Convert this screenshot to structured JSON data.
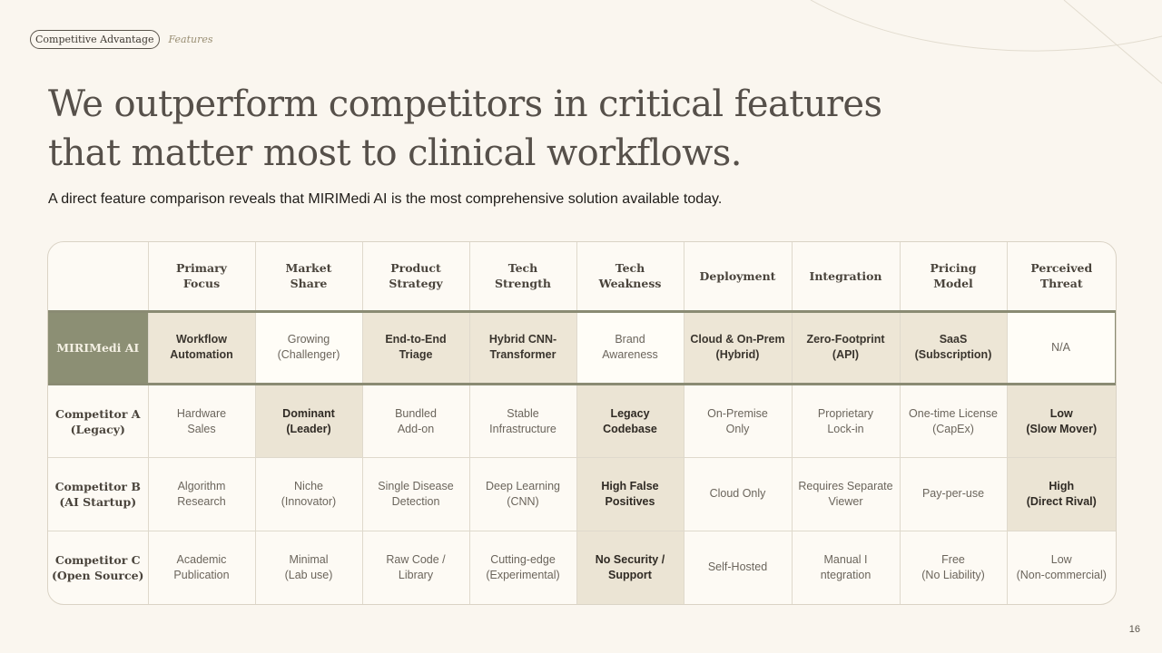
{
  "breadcrumb": {
    "section": "Competitive Advantage",
    "page": "Features"
  },
  "title_line1": "We outperform competitors in critical features",
  "title_line2": "that matter most to clinical workflows.",
  "subtitle": "A direct feature comparison reveals that MIRIMedi AI is the most comprehensive solution available today.",
  "table": {
    "headers": [
      [
        "Primary",
        "Focus"
      ],
      [
        "Market",
        "Share"
      ],
      [
        "Product",
        "Strategy"
      ],
      [
        "Tech",
        "Strength"
      ],
      [
        "Tech",
        "Weakness"
      ],
      [
        "Deployment"
      ],
      [
        "Integration"
      ],
      [
        "Pricing",
        "Model"
      ],
      [
        "Perceived",
        "Threat"
      ]
    ],
    "rows": [
      {
        "name": [
          "MIRIMedi AI"
        ],
        "cells": [
          {
            "lines": [
              "Workflow",
              "Automation"
            ],
            "highlight": true
          },
          {
            "lines": [
              "Growing",
              "(Challenger)"
            ],
            "highlight": false
          },
          {
            "lines": [
              "End-to-End",
              "Triage"
            ],
            "highlight": true
          },
          {
            "lines": [
              "Hybrid CNN-",
              "Transformer"
            ],
            "highlight": true
          },
          {
            "lines": [
              "Brand",
              "Awareness"
            ],
            "highlight": false
          },
          {
            "lines": [
              "Cloud & On-Prem",
              "(Hybrid)"
            ],
            "highlight": true
          },
          {
            "lines": [
              "Zero-Footprint",
              "(API)"
            ],
            "highlight": true
          },
          {
            "lines": [
              "SaaS",
              "(Subscription)"
            ],
            "highlight": true
          },
          {
            "lines": [
              "N/A"
            ],
            "highlight": false
          }
        ]
      },
      {
        "name": [
          "Competitor A",
          "(Legacy)"
        ],
        "cells": [
          {
            "lines": [
              "Hardware",
              "Sales"
            ],
            "highlight": false
          },
          {
            "lines": [
              "Dominant",
              "(Leader)"
            ],
            "highlight": true
          },
          {
            "lines": [
              "Bundled",
              "Add-on"
            ],
            "highlight": false
          },
          {
            "lines": [
              "Stable",
              "Infrastructure"
            ],
            "highlight": false
          },
          {
            "lines": [
              "Legacy",
              "Codebase"
            ],
            "highlight": true
          },
          {
            "lines": [
              "On-Premise",
              "Only"
            ],
            "highlight": false
          },
          {
            "lines": [
              "Proprietary",
              "Lock-in"
            ],
            "highlight": false
          },
          {
            "lines": [
              "One-time License",
              "(CapEx)"
            ],
            "highlight": false
          },
          {
            "lines": [
              "Low",
              "(Slow Mover)"
            ],
            "highlight": true
          }
        ]
      },
      {
        "name": [
          "Competitor B",
          "(AI Startup)"
        ],
        "cells": [
          {
            "lines": [
              "Algorithm",
              "Research"
            ],
            "highlight": false
          },
          {
            "lines": [
              "Niche",
              "(Innovator)"
            ],
            "highlight": false
          },
          {
            "lines": [
              "Single Disease",
              "Detection"
            ],
            "highlight": false
          },
          {
            "lines": [
              "Deep Learning",
              "(CNN)"
            ],
            "highlight": false
          },
          {
            "lines": [
              "High False",
              "Positives"
            ],
            "highlight": true
          },
          {
            "lines": [
              "Cloud Only"
            ],
            "highlight": false
          },
          {
            "lines": [
              "Requires Separate",
              "Viewer"
            ],
            "highlight": false
          },
          {
            "lines": [
              "Pay-per-use"
            ],
            "highlight": false
          },
          {
            "lines": [
              "High",
              "(Direct Rival)"
            ],
            "highlight": true
          }
        ]
      },
      {
        "name": [
          "Competitor C",
          "(Open Source)"
        ],
        "cells": [
          {
            "lines": [
              "Academic",
              "Publication"
            ],
            "highlight": false
          },
          {
            "lines": [
              "Minimal",
              "(Lab use)"
            ],
            "highlight": false
          },
          {
            "lines": [
              "Raw Code /",
              "Library"
            ],
            "highlight": false
          },
          {
            "lines": [
              "Cutting-edge",
              "(Experimental)"
            ],
            "highlight": false
          },
          {
            "lines": [
              "No Security /",
              "Support"
            ],
            "highlight": true
          },
          {
            "lines": [
              "Self-Hosted"
            ],
            "highlight": false
          },
          {
            "lines": [
              "Manual I",
              "ntegration"
            ],
            "highlight": false
          },
          {
            "lines": [
              "Free",
              "(No Liability)"
            ],
            "highlight": false
          },
          {
            "lines": [
              "Low",
              "(Non-commercial)"
            ],
            "highlight": false
          }
        ]
      }
    ]
  },
  "page_number": "16",
  "colors": {
    "background": "#faf6ef",
    "accent": "#8c8f74",
    "highlight": "#ebe4d4",
    "title": "#56504a"
  }
}
